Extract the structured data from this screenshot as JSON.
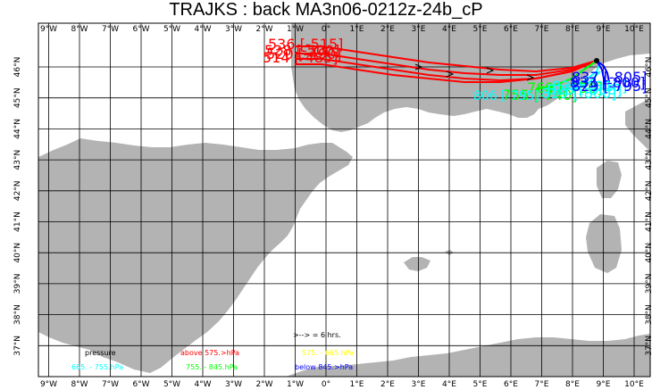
{
  "title": "TRAJKS : back MA3n06-0212z-24b_cP",
  "axes": {
    "lon_labels": [
      "9°W",
      "8°W",
      "7°W",
      "6°W",
      "5°W",
      "4°W",
      "3°W",
      "2°W",
      "1°W",
      "0°",
      "1°E",
      "2°E",
      "3°E",
      "4°E",
      "5°E",
      "6°E",
      "7°E",
      "8°E",
      "9°E",
      "10°E"
    ],
    "lat_labels": [
      "46°N",
      "45°N",
      "44°N",
      "43°N",
      "42°N",
      "41°N",
      "40°N",
      "39°N",
      "38°N",
      "37°N"
    ]
  },
  "colors": {
    "land": "#b3b3b3",
    "sea": "#ffffff",
    "above_575": "#ff0000",
    "575_665": "#ffff00",
    "665_755": "#00ffff",
    "755_845": "#00ff00",
    "below_845": "#0000ff"
  },
  "trajectory_labels": {
    "red": [
      "536 [-515]",
      "528 [-500]",
      "520 [-490]",
      "514 [-485]"
    ],
    "green": [
      "769 [-750]",
      "755 [-740]"
    ],
    "cyan": [
      "838 [-815]",
      "828 [-808]",
      "819 [-800]",
      "806 [-795]"
    ],
    "blue": [
      "837 [-805]",
      "833 [-800]",
      "829 [-795]"
    ]
  },
  "legend": {
    "pressure": "pressure",
    "arrow": ">--> = 6 hrs.",
    "above": "above  575.>hPa",
    "r575": "575.  -   665.hPa",
    "r665": "665.  -   755.hPa",
    "r755": "755.  -   845.hPa",
    "below": "below   845.>hPa"
  }
}
